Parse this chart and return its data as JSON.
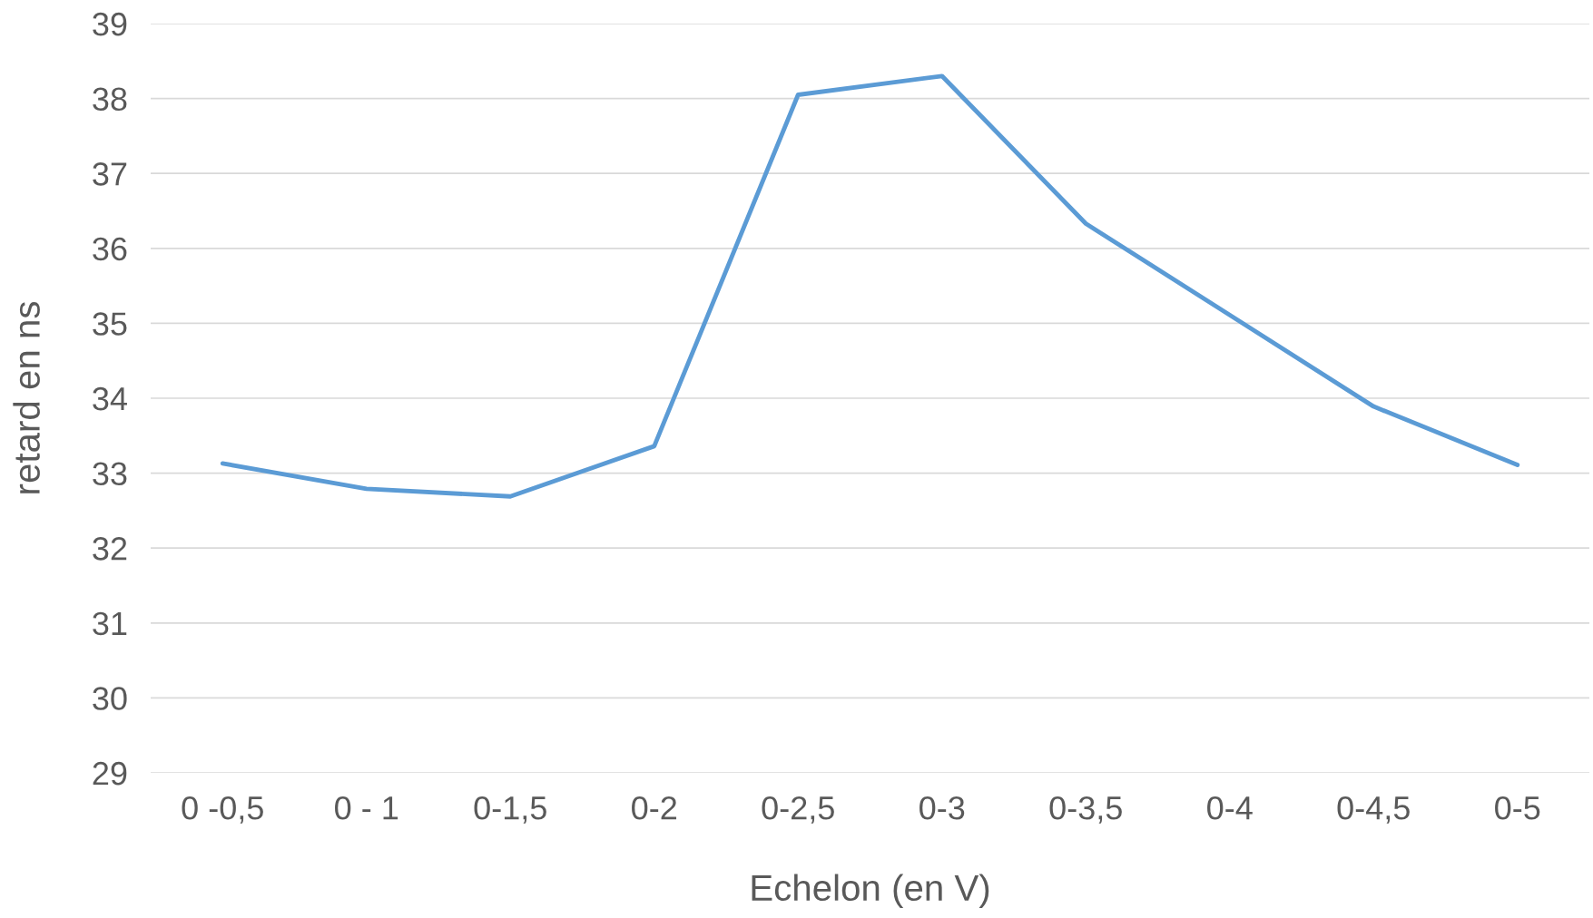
{
  "chart_data": {
    "type": "line",
    "xlabel": "Echelon (en V)",
    "ylabel": "retard en ns",
    "categories": [
      "0 -0,5",
      "0 - 1",
      "0-1,5",
      "0-2",
      "0-2,5",
      "0-3",
      "0-3,5",
      "0-4",
      "0-4,5",
      "0-5"
    ],
    "series": [
      {
        "color": "#5b9bd5",
        "values": [
          33.13,
          32.79,
          32.69,
          33.36,
          38.05,
          38.3,
          36.33,
          35.11,
          33.89,
          33.11
        ]
      }
    ],
    "ylim": [
      29,
      39
    ],
    "yticks": [
      29,
      30,
      31,
      32,
      33,
      34,
      35,
      36,
      37,
      38,
      39
    ],
    "grid": "y",
    "marker": "none",
    "line_style": "solid"
  }
}
